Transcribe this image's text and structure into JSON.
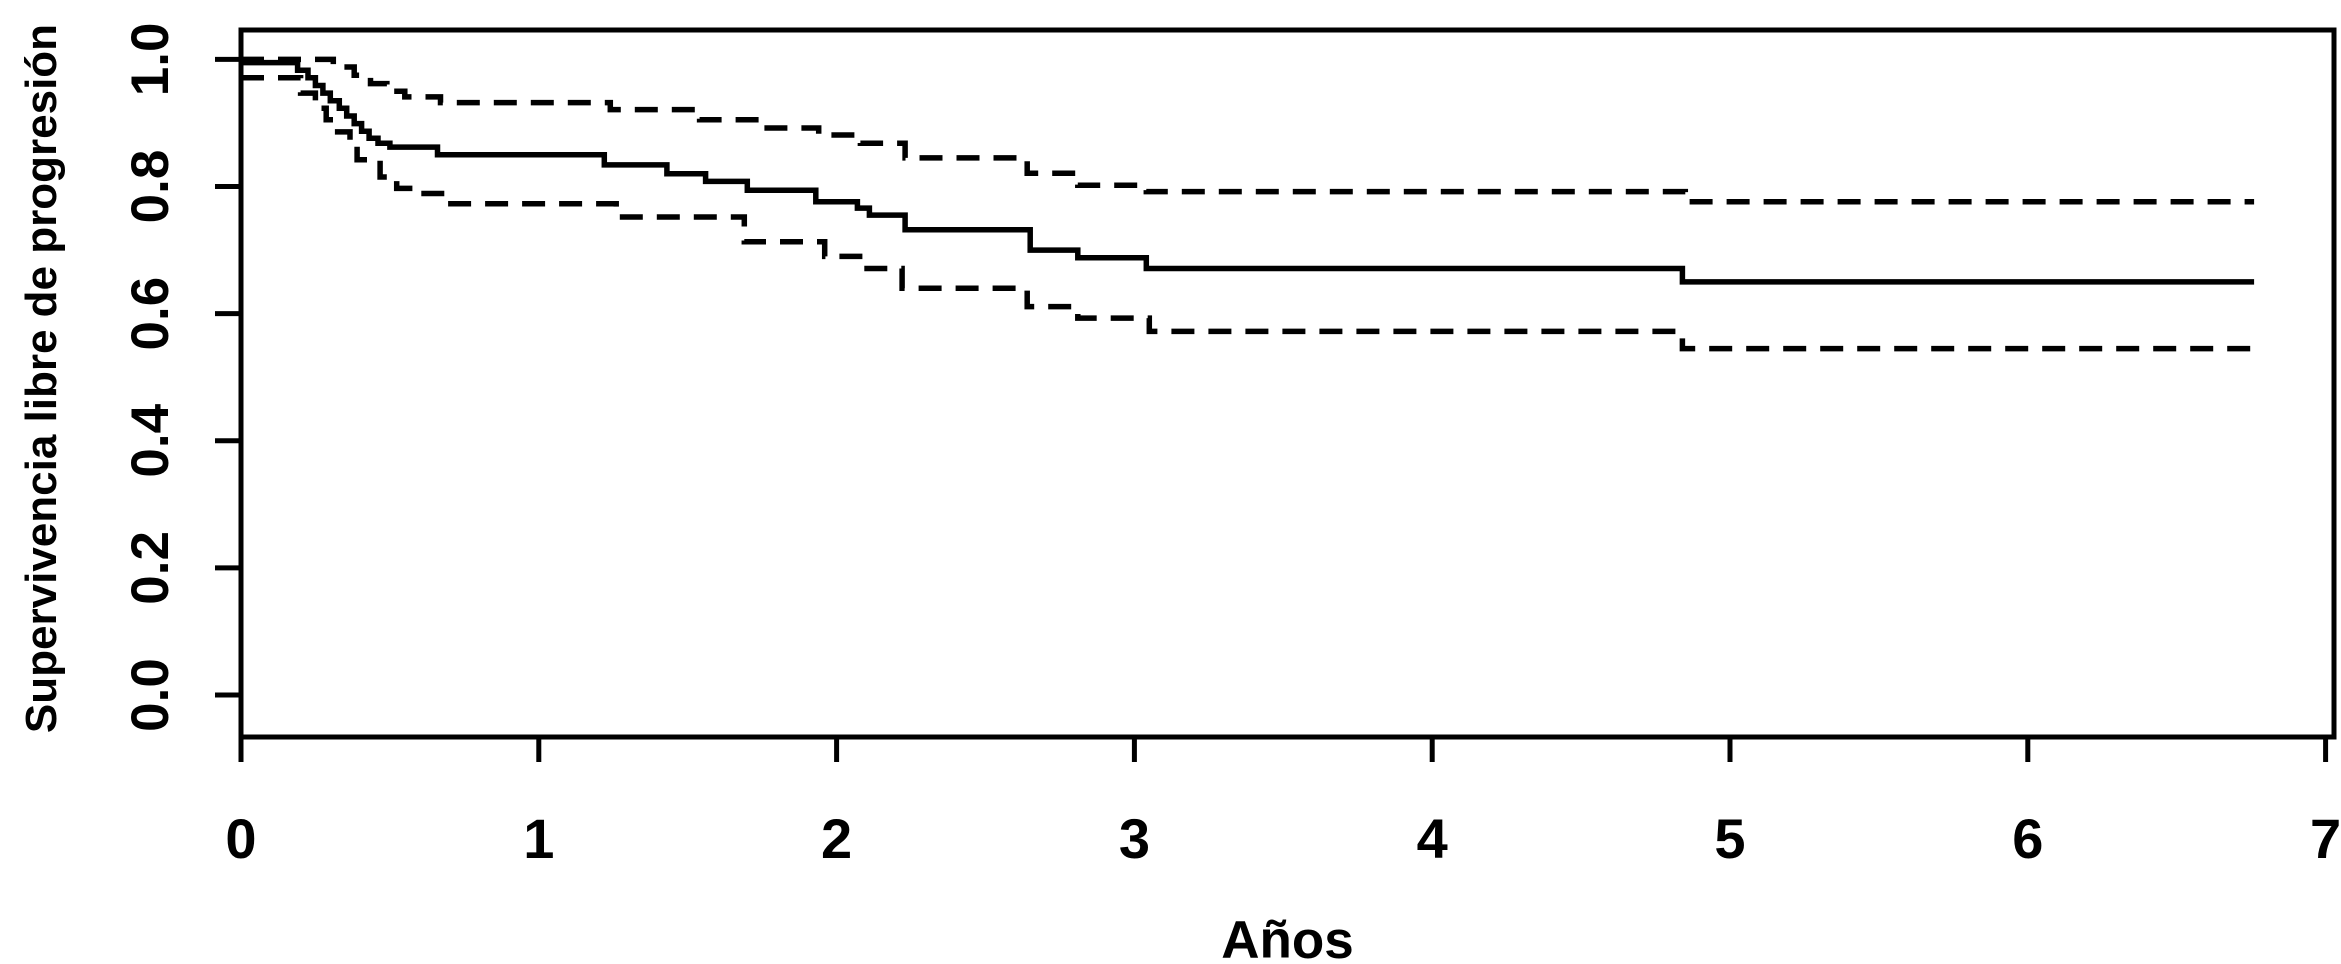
{
  "figure": {
    "xlabel": "Años",
    "ylabel": "Supervivencia libre de progresión",
    "x_tick_labels": [
      "0",
      "1",
      "2",
      "3",
      "4",
      "5",
      "6",
      "7"
    ],
    "y_tick_labels": [
      "0.0",
      "0.2",
      "0.4",
      "0.6",
      "0.8",
      "1.0"
    ],
    "line_color": "#000000",
    "background_color": "#ffffff"
  },
  "chart_data": {
    "type": "line",
    "subtype": "kaplan-meier-step",
    "title": "",
    "xlabel": "Años",
    "ylabel": "Supervivencia libre de progresión",
    "xlim": [
      0,
      7
    ],
    "ylim": [
      0.0,
      1.0
    ],
    "x_ticks": [
      0,
      1,
      2,
      3,
      4,
      5,
      6,
      7
    ],
    "y_ticks": [
      0.0,
      0.2,
      0.4,
      0.6,
      0.8,
      1.0
    ],
    "grid": false,
    "legend": "none",
    "series": [
      {
        "name": "progression-free-survival-estimate",
        "style": "solid",
        "step": true,
        "points": [
          [
            0,
            0.995
          ],
          [
            0.19,
            0.983
          ],
          [
            0.225,
            0.971
          ],
          [
            0.25,
            0.959
          ],
          [
            0.275,
            0.947
          ],
          [
            0.3,
            0.935
          ],
          [
            0.33,
            0.923
          ],
          [
            0.355,
            0.911
          ],
          [
            0.38,
            0.899
          ],
          [
            0.405,
            0.887
          ],
          [
            0.43,
            0.876
          ],
          [
            0.46,
            0.868
          ],
          [
            0.5,
            0.862
          ],
          [
            0.66,
            0.85
          ],
          [
            1.22,
            0.834
          ],
          [
            1.43,
            0.82
          ],
          [
            1.56,
            0.808
          ],
          [
            1.7,
            0.794
          ],
          [
            1.93,
            0.776
          ],
          [
            2.07,
            0.766
          ],
          [
            2.11,
            0.755
          ],
          [
            2.23,
            0.732
          ],
          [
            2.65,
            0.7
          ],
          [
            2.81,
            0.688
          ],
          [
            3.04,
            0.671
          ],
          [
            4.84,
            0.65
          ],
          [
            6.76,
            0.65
          ]
        ]
      },
      {
        "name": "upper-95ci",
        "style": "dashed",
        "step": true,
        "points": [
          [
            0,
            1.0
          ],
          [
            0.31,
            0.988
          ],
          [
            0.38,
            0.975
          ],
          [
            0.435,
            0.962
          ],
          [
            0.49,
            0.95
          ],
          [
            0.55,
            0.941
          ],
          [
            0.67,
            0.932
          ],
          [
            1.24,
            0.921
          ],
          [
            1.54,
            0.905
          ],
          [
            1.74,
            0.892
          ],
          [
            1.94,
            0.881
          ],
          [
            2.08,
            0.868
          ],
          [
            2.23,
            0.845
          ],
          [
            2.64,
            0.821
          ],
          [
            2.81,
            0.802
          ],
          [
            3.04,
            0.792
          ],
          [
            4.85,
            0.776
          ],
          [
            6.76,
            0.776
          ]
        ]
      },
      {
        "name": "lower-95ci",
        "style": "dashed",
        "step": true,
        "points": [
          [
            0,
            0.971
          ],
          [
            0.2,
            0.947
          ],
          [
            0.25,
            0.923
          ],
          [
            0.286,
            0.905
          ],
          [
            0.31,
            0.886
          ],
          [
            0.366,
            0.865
          ],
          [
            0.39,
            0.842
          ],
          [
            0.467,
            0.815
          ],
          [
            0.523,
            0.797
          ],
          [
            0.6,
            0.789
          ],
          [
            0.69,
            0.773
          ],
          [
            1.26,
            0.752
          ],
          [
            1.69,
            0.713
          ],
          [
            1.96,
            0.69
          ],
          [
            2.09,
            0.671
          ],
          [
            2.22,
            0.64
          ],
          [
            2.64,
            0.611
          ],
          [
            2.81,
            0.593
          ],
          [
            3.05,
            0.572
          ],
          [
            4.84,
            0.545
          ],
          [
            6.76,
            0.545
          ]
        ]
      }
    ]
  }
}
